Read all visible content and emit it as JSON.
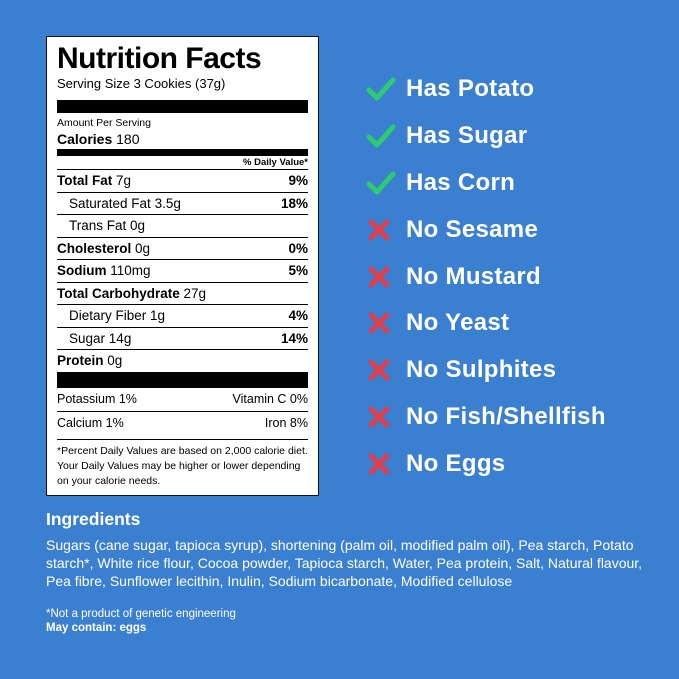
{
  "label": {
    "title": "Nutrition Facts",
    "serving": "Serving Size 3 Cookies (37g)",
    "amount_per_serving": "Amount Per Serving",
    "calories_label": "Calories",
    "calories_value": "180",
    "dv_header": "% Daily Value*",
    "rows": [
      {
        "name": "Total Fat",
        "amount": "7g",
        "pct": "9%"
      },
      {
        "name": "Saturated Fat",
        "amount": "3.5g",
        "pct": "18%"
      },
      {
        "name": "Trans Fat",
        "amount": "0g",
        "pct": ""
      },
      {
        "name": "Cholesterol",
        "amount": "0g",
        "pct": "0%"
      },
      {
        "name": "Sodium",
        "amount": "110mg",
        "pct": "5%"
      },
      {
        "name": "Total Carbohydrate",
        "amount": "27g",
        "pct": ""
      },
      {
        "name": "Dietary Fiber",
        "amount": "1g",
        "pct": "4%"
      },
      {
        "name": "Sugar",
        "amount": "14g",
        "pct": "14%"
      },
      {
        "name": "Protein",
        "amount": "0g",
        "pct": ""
      }
    ],
    "vitamins": [
      {
        "left": "Potassium 1%",
        "right": "Vitamin C 0%"
      },
      {
        "left": "Calcium 1%",
        "right": "Iron 8%"
      }
    ],
    "footnote": "*Percent Daily Values are based on 2,000 calorie diet. Your Daily Values may be higher or lower depending on your calorie needs."
  },
  "claims": [
    {
      "text": "Has Potato",
      "icon": "check-icon"
    },
    {
      "text": "Has Sugar",
      "icon": "check-icon"
    },
    {
      "text": "Has Corn",
      "icon": "check-icon"
    },
    {
      "text": "No Sesame",
      "icon": "cross-icon"
    },
    {
      "text": "No Mustard",
      "icon": "cross-icon"
    },
    {
      "text": "No Yeast",
      "icon": "cross-icon"
    },
    {
      "text": "No Sulphites",
      "icon": "cross-icon"
    },
    {
      "text": "No Fish/Shellfish",
      "icon": "cross-icon"
    },
    {
      "text": "No Eggs",
      "icon": "cross-icon"
    }
  ],
  "ingredients": {
    "title": "Ingredients",
    "text": "Sugars (cane sugar, tapioca syrup), shortening (palm oil, modified palm oil), Pea starch, Potato starch*, White rice flour, Cocoa powder, Tapioca starch, Water, Pea protein, Salt, Natural flavour, Pea fibre, Sunflower lecithin, Inulin, Sodium bicarbonate, Modified cellulose",
    "note": "*Not a product of genetic engineering",
    "allergen": "May contain: eggs"
  },
  "colors": {
    "background": "#3a7fd0",
    "check": "#2ecc71",
    "cross": "#e0404b"
  }
}
